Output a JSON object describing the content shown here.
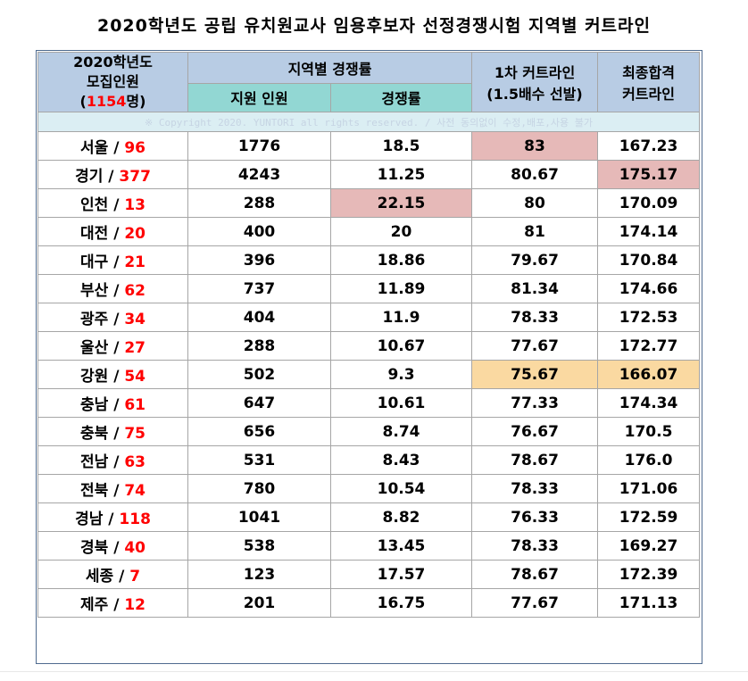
{
  "title": "2020학년도 공립 유치원교사 임용후보자 선정경쟁시험 지역별 커트라인",
  "header": {
    "recruit_line1": "2020학년도",
    "recruit_line2": "모집인원",
    "recruit_total": "1154",
    "recruit_suffix": "명",
    "recruit_open": "(",
    "recruit_close": ")",
    "competition_group": "지역별 경쟁률",
    "applicants": "지원 인원",
    "ratio": "경쟁률",
    "first_cutline_line1": "1차 커트라인",
    "first_cutline_line2": "(1.5배수 선발)",
    "final_cutline_line1": "최종합격",
    "final_cutline_line2": "커트라인"
  },
  "copyright": "※ Copyright 2020. YUNTORI all rights reserved. / 사전 동의없이 수정,배포,사용 불가",
  "colors": {
    "header_blue": "#b8cce4",
    "header_teal": "#92d7d3",
    "highlight_red": "#e6b9b8",
    "highlight_yellow": "#fad9a1",
    "number_red": "#ff0000"
  },
  "rows": [
    {
      "region": "서울",
      "sep": " / ",
      "recruit": "96",
      "applicants": "1776",
      "ratio": "18.5",
      "first": "83",
      "final": "167.23"
    },
    {
      "region": "경기",
      "sep": " / ",
      "recruit": "377",
      "applicants": "4243",
      "ratio": "11.25",
      "first": "80.67",
      "final": "175.17"
    },
    {
      "region": "인천",
      "sep": " / ",
      "recruit": "13",
      "applicants": "288",
      "ratio": "22.15",
      "first": "80",
      "final": "170.09"
    },
    {
      "region": "대전",
      "sep": " / ",
      "recruit": "20",
      "applicants": "400",
      "ratio": "20",
      "first": "81",
      "final": "174.14"
    },
    {
      "region": "대구",
      "sep": " / ",
      "recruit": "21",
      "applicants": "396",
      "ratio": "18.86",
      "first": "79.67",
      "final": "170.84"
    },
    {
      "region": "부산",
      "sep": " / ",
      "recruit": "62",
      "applicants": "737",
      "ratio": "11.89",
      "first": "81.34",
      "final": "174.66"
    },
    {
      "region": "광주",
      "sep": " / ",
      "recruit": "34",
      "applicants": "404",
      "ratio": "11.9",
      "first": "78.33",
      "final": "172.53"
    },
    {
      "region": "울산",
      "sep": " / ",
      "recruit": "27",
      "applicants": "288",
      "ratio": "10.67",
      "first": "77.67",
      "final": "172.77"
    },
    {
      "region": "강원",
      "sep": " / ",
      "recruit": "54",
      "applicants": "502",
      "ratio": "9.3",
      "first": "75.67",
      "final": "166.07"
    },
    {
      "region": "충남",
      "sep": " / ",
      "recruit": "61",
      "applicants": "647",
      "ratio": "10.61",
      "first": "77.33",
      "final": "174.34"
    },
    {
      "region": "충북",
      "sep": " / ",
      "recruit": "75",
      "applicants": "656",
      "ratio": "8.74",
      "first": "76.67",
      "final": "170.5"
    },
    {
      "region": "전남",
      "sep": " / ",
      "recruit": "63",
      "applicants": "531",
      "ratio": "8.43",
      "first": "78.67",
      "final": "176.0"
    },
    {
      "region": "전북",
      "sep": " / ",
      "recruit": "74",
      "applicants": "780",
      "ratio": "10.54",
      "first": "78.33",
      "final": "171.06"
    },
    {
      "region": "경남",
      "sep": " / ",
      "recruit": "118",
      "applicants": "1041",
      "ratio": "8.82",
      "first": "76.33",
      "final": "172.59"
    },
    {
      "region": "경북",
      "sep": " / ",
      "recruit": "40",
      "applicants": "538",
      "ratio": "13.45",
      "first": "78.33",
      "final": "169.27"
    },
    {
      "region": "세종",
      "sep": " / ",
      "recruit": "7",
      "applicants": "123",
      "ratio": "17.57",
      "first": "78.67",
      "final": "172.39"
    },
    {
      "region": "제주",
      "sep": " / ",
      "recruit": "12",
      "applicants": "201",
      "ratio": "16.75",
      "first": "77.67",
      "final": "171.13"
    }
  ]
}
